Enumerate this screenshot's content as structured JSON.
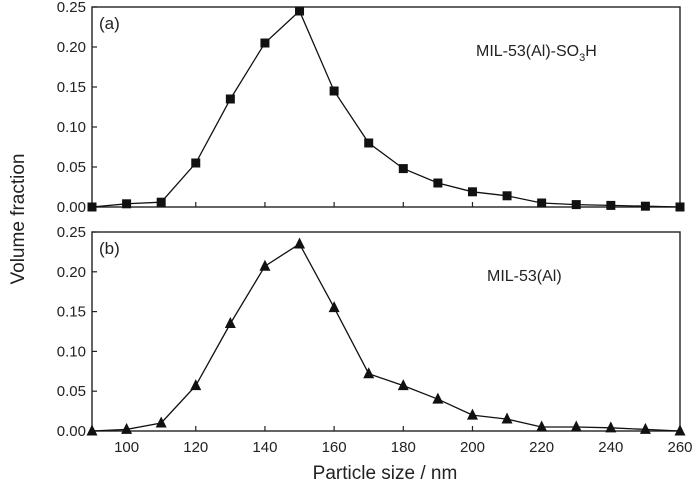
{
  "chart_data": [
    {
      "type": "line",
      "panel_label": "(a)",
      "series": [
        {
          "name": "MIL-53(Al)-SO3H",
          "marker": "square",
          "x": [
            90,
            100,
            110,
            120,
            130,
            140,
            150,
            160,
            170,
            180,
            190,
            200,
            210,
            220,
            230,
            240,
            250,
            260
          ],
          "y": [
            0.0,
            0.004,
            0.006,
            0.055,
            0.135,
            0.205,
            0.245,
            0.145,
            0.08,
            0.048,
            0.03,
            0.019,
            0.014,
            0.005,
            0.003,
            0.002,
            0.001,
            0.0
          ]
        }
      ],
      "sample_label": {
        "main": "MIL-53(Al)-SO",
        "sub": "3",
        "tail": "H"
      },
      "xlim": [
        90,
        260
      ],
      "ylim": [
        0,
        0.25
      ],
      "yticks": [
        "0.00",
        "0.05",
        "0.10",
        "0.15",
        "0.20",
        "0.25"
      ]
    },
    {
      "type": "line",
      "panel_label": "(b)",
      "series": [
        {
          "name": "MIL-53(Al)",
          "marker": "triangle",
          "x": [
            90,
            100,
            110,
            120,
            130,
            140,
            150,
            160,
            170,
            180,
            190,
            200,
            210,
            220,
            230,
            240,
            250,
            260
          ],
          "y": [
            0.0,
            0.002,
            0.01,
            0.057,
            0.135,
            0.207,
            0.235,
            0.155,
            0.072,
            0.057,
            0.04,
            0.02,
            0.015,
            0.005,
            0.005,
            0.004,
            0.002,
            0.0
          ]
        }
      ],
      "sample_label": {
        "main": "MIL-53(Al)"
      },
      "xlim": [
        90,
        260
      ],
      "ylim": [
        0,
        0.25
      ],
      "yticks": [
        "0.00",
        "0.05",
        "0.10",
        "0.15",
        "0.20",
        "0.25"
      ],
      "xticks": [
        "100",
        "120",
        "140",
        "160",
        "180",
        "200",
        "220",
        "240",
        "260"
      ]
    }
  ],
  "axes": {
    "xlabel": "Particle size / nm",
    "ylabel": "Volume fraction"
  },
  "colors": {
    "axis": "#222222",
    "series": "#111111"
  }
}
